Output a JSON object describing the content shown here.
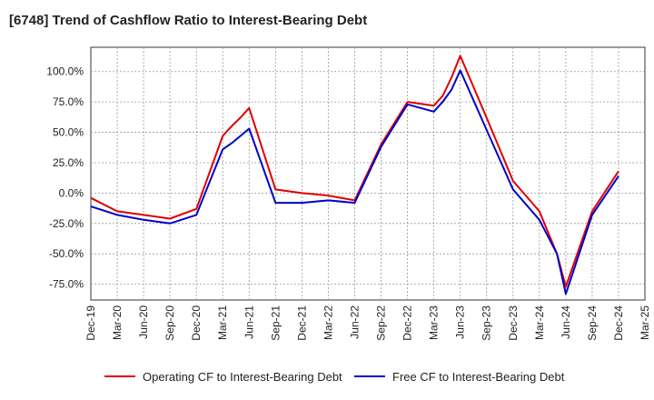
{
  "chart_data": {
    "type": "line",
    "title": "[6748]  Trend of Cashflow Ratio to Interest-Bearing Debt",
    "xlabel": "",
    "ylabel": "",
    "x_ticks": [
      "Dec-19",
      "Mar-20",
      "Jun-20",
      "Sep-20",
      "Dec-20",
      "Mar-21",
      "Jun-21",
      "Sep-21",
      "Dec-21",
      "Mar-22",
      "Jun-22",
      "Sep-22",
      "Dec-22",
      "Mar-23",
      "Jun-23",
      "Sep-23",
      "Dec-23",
      "Mar-24",
      "Jun-24",
      "Sep-24",
      "Dec-24",
      "Mar-25"
    ],
    "y_ticks": [
      "100.0%",
      "75.0%",
      "50.0%",
      "25.0%",
      "0.0%",
      "-25.0%",
      "-50.0%",
      "-75.0%"
    ],
    "y_tick_values": [
      100,
      75,
      50,
      25,
      0,
      -25,
      -50,
      -75
    ],
    "ylim": [
      -88,
      120
    ],
    "grid": true,
    "legend_position": "bottom",
    "series": [
      {
        "name": "Operating CF to Interest-Bearing Debt",
        "color": "#dd0000",
        "points": [
          [
            "Dec-19",
            -4
          ],
          [
            "Mar-20",
            -15
          ],
          [
            "Jun-20",
            -18
          ],
          [
            "Sep-20",
            -21
          ],
          [
            "Dec-20",
            -13
          ],
          [
            "Mar-21",
            47
          ],
          [
            "Apr-21",
            55
          ],
          [
            "May-21",
            62
          ],
          [
            "Jun-21",
            70
          ],
          [
            "Sep-21",
            3
          ],
          [
            "Dec-21",
            0
          ],
          [
            "Mar-22",
            -2
          ],
          [
            "Jun-22",
            -6
          ],
          [
            "Sep-22",
            40
          ],
          [
            "Dec-22",
            75
          ],
          [
            "Mar-23",
            72
          ],
          [
            "Apr-23",
            80
          ],
          [
            "May-23",
            95
          ],
          [
            "Jun-23",
            113
          ],
          [
            "Sep-23",
            62
          ],
          [
            "Dec-23",
            10
          ],
          [
            "Mar-24",
            -15
          ],
          [
            "May-24",
            -50
          ],
          [
            "Jun-24",
            -77
          ],
          [
            "Sep-24",
            -15
          ],
          [
            "Dec-24",
            18
          ]
        ]
      },
      {
        "name": "Free CF to Interest-Bearing Debt",
        "color": "#0000cc",
        "points": [
          [
            "Dec-19",
            -11
          ],
          [
            "Mar-20",
            -18
          ],
          [
            "Jun-20",
            -22
          ],
          [
            "Sep-20",
            -25
          ],
          [
            "Dec-20",
            -18
          ],
          [
            "Mar-21",
            36
          ],
          [
            "Apr-21",
            41
          ],
          [
            "May-21",
            47
          ],
          [
            "Jun-21",
            53
          ],
          [
            "Sep-21",
            -8
          ],
          [
            "Dec-21",
            -8
          ],
          [
            "Mar-22",
            -6
          ],
          [
            "Jun-22",
            -8
          ],
          [
            "Sep-22",
            38
          ],
          [
            "Dec-22",
            73
          ],
          [
            "Mar-23",
            67
          ],
          [
            "Apr-23",
            75
          ],
          [
            "May-23",
            85
          ],
          [
            "Jun-23",
            101
          ],
          [
            "Sep-23",
            52
          ],
          [
            "Dec-23",
            3
          ],
          [
            "Mar-24",
            -22
          ],
          [
            "May-24",
            -50
          ],
          [
            "Jun-24",
            -83
          ],
          [
            "Sep-24",
            -18
          ],
          [
            "Dec-24",
            14
          ]
        ]
      }
    ]
  }
}
